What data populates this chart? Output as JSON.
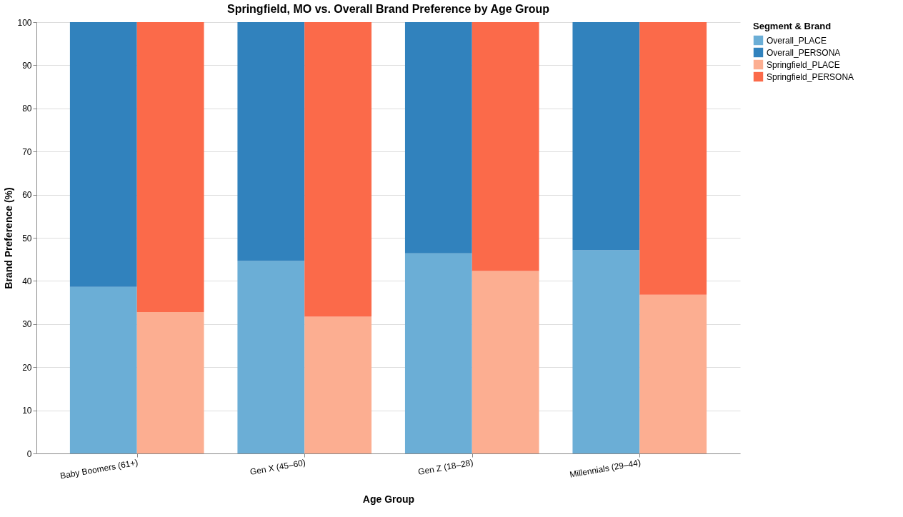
{
  "chart_data": {
    "type": "bar",
    "title": "Springfield, MO vs. Overall Brand Preference by Age Group",
    "xlabel": "Age Group",
    "ylabel": "Brand Preference (%)",
    "legend_title": "Segment & Brand",
    "categories": [
      "Baby Boomers (61+)",
      null,
      "Gen X (45–60)",
      null,
      "Gen Z (18–28)",
      null,
      "Millennials (29–44)",
      null
    ],
    "stacked": true,
    "series": [
      {
        "name": "Overall_PLACE",
        "color": "#6baed6",
        "values": [
          38.6,
          null,
          44.6,
          null,
          46.4,
          null,
          47.1,
          null
        ]
      },
      {
        "name": "Overall_PERSONA",
        "color": "#3182bd",
        "values": [
          61.4,
          null,
          55.4,
          null,
          53.6,
          null,
          52.9,
          null
        ]
      },
      {
        "name": "Springfield_PLACE",
        "color": "#fcae91",
        "values": [
          null,
          32.8,
          null,
          31.7,
          null,
          42.3,
          null,
          36.8
        ]
      },
      {
        "name": "Springfield_PERSONA",
        "color": "#fb6a4a",
        "values": [
          null,
          67.2,
          null,
          68.3,
          null,
          57.7,
          null,
          63.2
        ]
      }
    ],
    "ylim": [
      0,
      100
    ],
    "yticks": [
      0,
      10,
      20,
      30,
      40,
      50,
      60,
      70,
      80,
      90,
      100
    ],
    "grid": "y",
    "legend": "top right"
  }
}
